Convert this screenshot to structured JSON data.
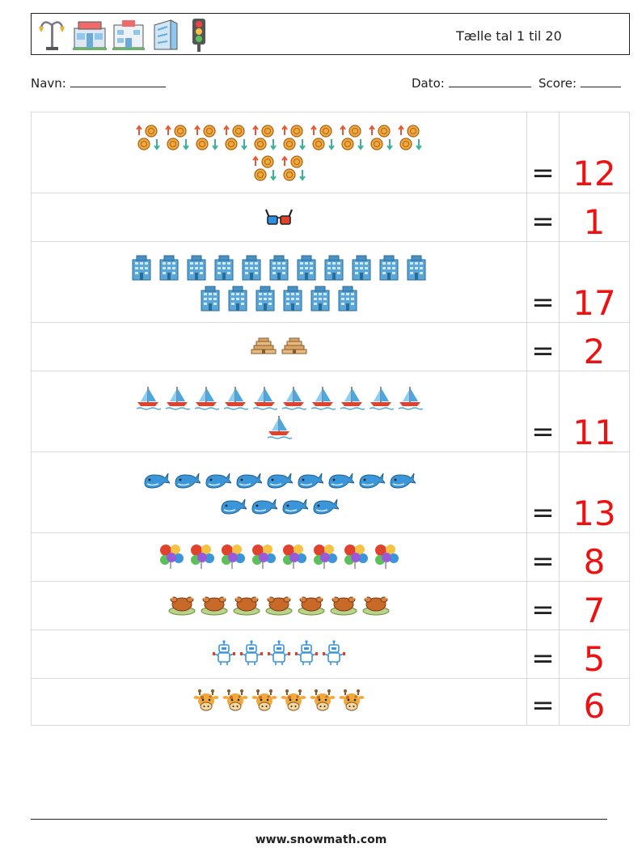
{
  "header": {
    "title": "Tælle tal 1 til 20",
    "icons": [
      "street-lamp-icon",
      "shop-icon",
      "hospital-icon",
      "office-building-icon",
      "traffic-light-icon"
    ]
  },
  "info": {
    "name_label": "Navn:",
    "date_label": "Dato:",
    "score_label": "Score:"
  },
  "rows": [
    {
      "icon": "coin-exchange-icon",
      "count": 12,
      "answer": "12",
      "equals": "="
    },
    {
      "icon": "3d-glasses-icon",
      "count": 1,
      "answer": "1",
      "equals": "="
    },
    {
      "icon": "skyscraper-icon",
      "count": 17,
      "answer": "17",
      "equals": "="
    },
    {
      "icon": "pyramid-icon",
      "count": 2,
      "answer": "2",
      "equals": "="
    },
    {
      "icon": "sailboat-icon",
      "count": 11,
      "answer": "11",
      "equals": "="
    },
    {
      "icon": "whale-icon",
      "count": 13,
      "answer": "13",
      "equals": "="
    },
    {
      "icon": "balloons-icon",
      "count": 8,
      "answer": "8",
      "equals": "="
    },
    {
      "icon": "roast-chicken-icon",
      "count": 7,
      "answer": "7",
      "equals": "="
    },
    {
      "icon": "robot-icon",
      "count": 5,
      "answer": "5",
      "equals": "="
    },
    {
      "icon": "giraffe-icon",
      "count": 6,
      "answer": "6",
      "equals": "="
    }
  ],
  "footer": {
    "url": "www.snowmath.com"
  }
}
